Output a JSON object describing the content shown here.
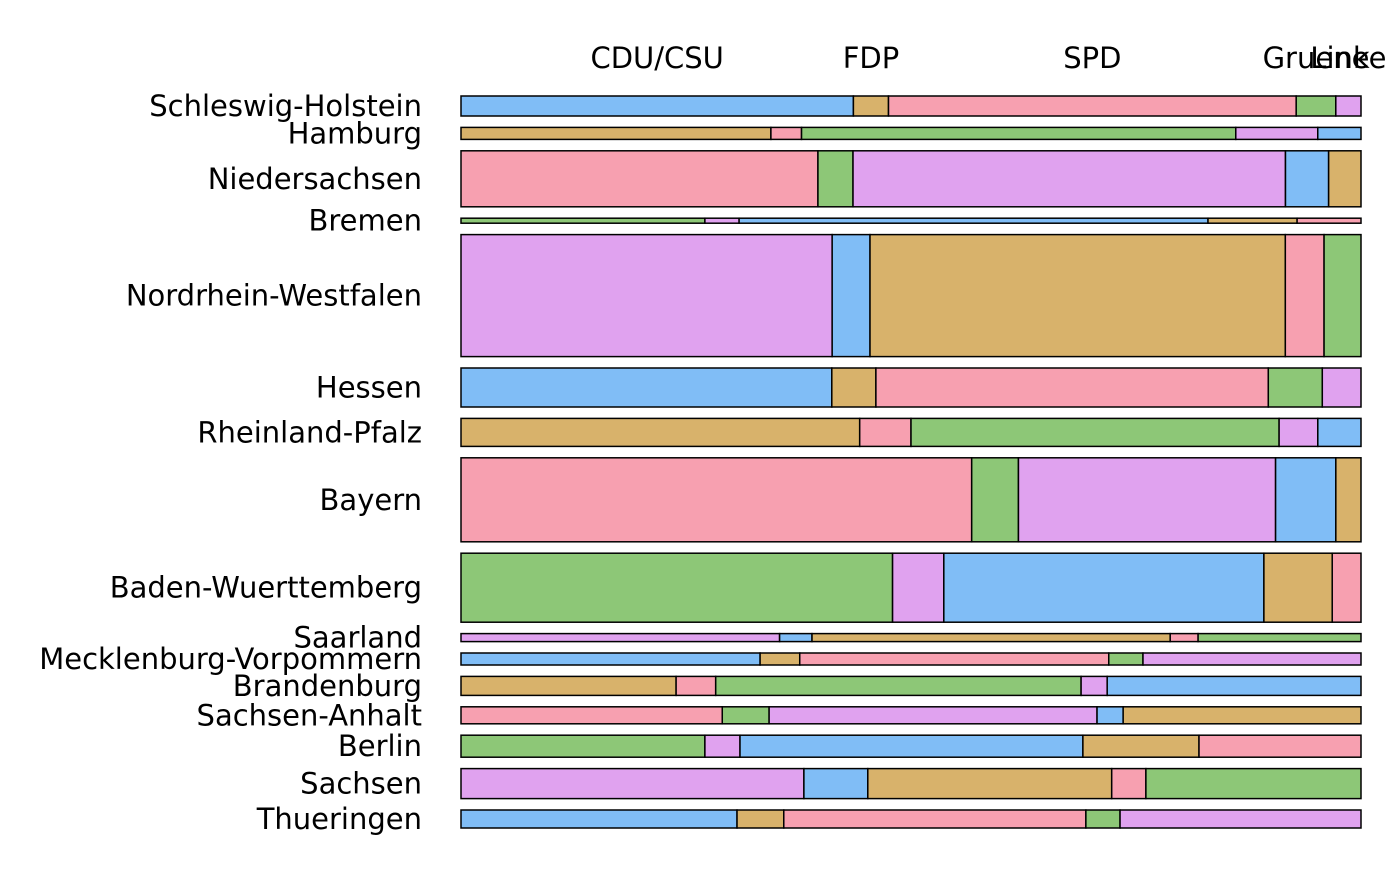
{
  "chart_data": {
    "type": "mosaic",
    "categories": [
      "Schleswig-Holstein",
      "Hamburg",
      "Niedersachsen",
      "Bremen",
      "Nordrhein-Westfalen",
      "Hessen",
      "Rheinland-Pfalz",
      "Bayern",
      "Baden-Wuerttemberg",
      "Saarland",
      "Mecklenburg-Vorpommern",
      "Brandenburg",
      "Sachsen-Anhalt",
      "Berlin",
      "Sachsen",
      "Thueringen"
    ],
    "row_sizes": [
      20,
      12,
      56,
      5,
      122,
      39,
      28,
      84,
      69,
      8,
      12,
      19,
      17,
      22,
      30,
      18
    ],
    "palette": [
      "#80bdf6",
      "#d8b26b",
      "#f7a0b0",
      "#8dc777",
      "#e0a2ef"
    ],
    "series": [
      {
        "name": "CDU/CSU",
        "values": [
          43.6,
          34.4,
          39.7,
          27.1,
          41.2,
          41.2,
          44.3,
          56.8,
          48.0,
          35.4,
          33.2,
          23.9,
          29.0,
          27.1,
          38.1,
          30.7
        ]
      },
      {
        "name": "FDP",
        "values": [
          3.9,
          3.4,
          3.9,
          3.8,
          4.2,
          4.9,
          5.7,
          5.2,
          5.7,
          3.6,
          4.4,
          4.4,
          5.2,
          3.9,
          7.1,
          5.2
        ]
      },
      {
        "name": "SPD",
        "values": [
          45.3,
          48.2,
          48.1,
          52.1,
          46.1,
          43.6,
          40.9,
          28.6,
          35.6,
          39.8,
          34.3,
          40.6,
          36.4,
          38.1,
          27.1,
          33.6
        ]
      },
      {
        "name": "Gruene",
        "values": [
          4.4,
          9.1,
          4.8,
          9.9,
          4.3,
          6.0,
          4.3,
          6.7,
          7.6,
          3.1,
          3.8,
          2.9,
          2.9,
          12.9,
          3.8,
          3.8
        ]
      },
      {
        "name": "Linke",
        "values": [
          2.8,
          4.8,
          3.6,
          7.1,
          4.1,
          4.3,
          4.8,
          2.8,
          3.2,
          18.1,
          24.2,
          28.2,
          26.4,
          18.0,
          23.9,
          26.8
        ]
      }
    ]
  }
}
